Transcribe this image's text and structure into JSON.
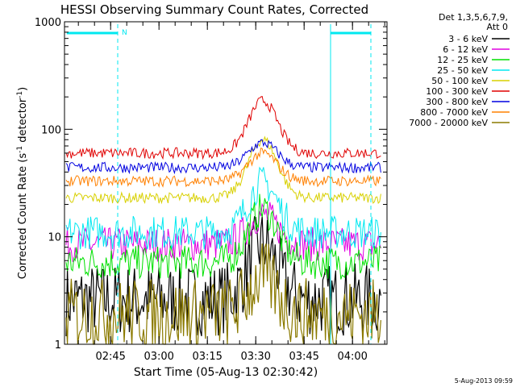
{
  "chart_data": {
    "type": "line",
    "title": "HESSI Observing Summary Count Rates, Corrected",
    "xlabel": "Start Time (05-Aug-13 02:30:42)",
    "ylabel_parts": [
      "Corrected Count Rate (s",
      "-1",
      " detector",
      "-1",
      ")"
    ],
    "yscale": "log",
    "ylim": [
      1,
      1000
    ],
    "xlim_minutes": [
      0,
      100
    ],
    "x_ticks": [
      {
        "label": "02:45",
        "minute": 14.3
      },
      {
        "label": "03:00",
        "minute": 29.3
      },
      {
        "label": "03:15",
        "minute": 44.3
      },
      {
        "label": "03:30",
        "minute": 59.3
      },
      {
        "label": "03:45",
        "minute": 74.3
      },
      {
        "label": "04:00",
        "minute": 89.3
      }
    ],
    "y_ticks": [
      {
        "label": "1",
        "value": 1
      },
      {
        "label": "10",
        "value": 10
      },
      {
        "label": "100",
        "value": 100
      },
      {
        "label": "1000",
        "value": 1000
      }
    ],
    "legend_header": [
      "Det 1,3,5,6,7,9,",
      "Att 0"
    ],
    "legend_position": "right",
    "markers": {
      "night_label": "N",
      "night_end_minute": 16.5,
      "night2_start_minute": 82.5,
      "saa_end_minute": 95.0
    },
    "peak_minute": 61.5,
    "peak_width": 4.5,
    "series": [
      {
        "name": "3 - 6 keV",
        "color": "#000000",
        "baseline": 2.6,
        "peak": 8.5
      },
      {
        "name": "6 - 12 keV",
        "color": "#e000e0",
        "baseline": 8.5,
        "peak": 16
      },
      {
        "name": "12 - 25 keV",
        "color": "#00e000",
        "baseline": 5.8,
        "peak": 18
      },
      {
        "name": "25 - 50 keV",
        "color": "#00e8f0",
        "baseline": 11,
        "peak": 32
      },
      {
        "name": "50 - 100 keV",
        "color": "#d8d000",
        "baseline": 23,
        "peak": 80
      },
      {
        "name": "100 - 300 keV",
        "color": "#e00000",
        "baseline": 60,
        "peak": 185
      },
      {
        "name": "300 - 800 keV",
        "color": "#0000e0",
        "baseline": 44,
        "peak": 75
      },
      {
        "name": "800 - 7000 keV",
        "color": "#ff8000",
        "baseline": 33,
        "peak": 60
      },
      {
        "name": "7000 - 20000 keV",
        "color": "#8b7a00",
        "baseline": 1.9,
        "peak": 4.2
      }
    ]
  },
  "footer_timestamp": "5-Aug-2013 09:59",
  "colors": {
    "axis": "#000000",
    "marker": "#00e8f0",
    "background": "#ffffff"
  }
}
